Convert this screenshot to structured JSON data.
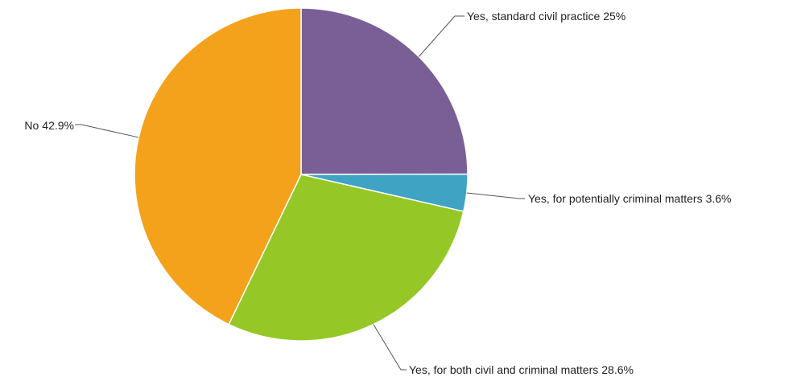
{
  "chart_data": {
    "type": "pie",
    "title": "",
    "start_angle_deg": 0,
    "direction": "clockwise",
    "slices": [
      {
        "label": "Yes, standard civil practice",
        "value": 25,
        "display": "25%",
        "color": "#7a5f96"
      },
      {
        "label": "Yes, for potentially criminal matters",
        "value": 3.6,
        "display": "3.6%",
        "color": "#3fa3c4"
      },
      {
        "label": "Yes, for both civil and criminal matters",
        "value": 28.6,
        "display": "28.6%",
        "color": "#95c726"
      },
      {
        "label": "No",
        "value": 42.9,
        "display": "42.9%",
        "color": "#f4a21b"
      }
    ]
  }
}
